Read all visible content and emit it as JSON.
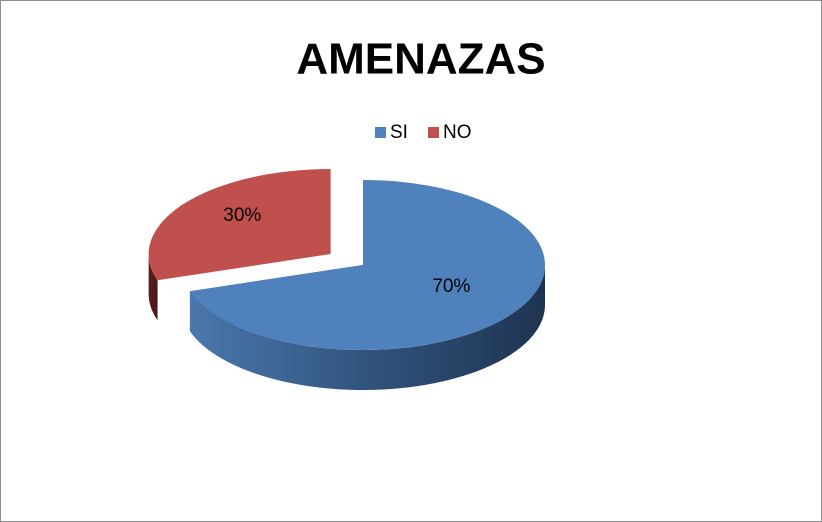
{
  "chart_data": {
    "type": "pie",
    "title": "AMENAZAS",
    "categories": [
      "SI",
      "NO"
    ],
    "values": [
      70,
      30
    ],
    "value_labels": [
      "70%",
      "30%"
    ],
    "colors": [
      "#4f81bd",
      "#c0504d"
    ],
    "legend": "top"
  }
}
